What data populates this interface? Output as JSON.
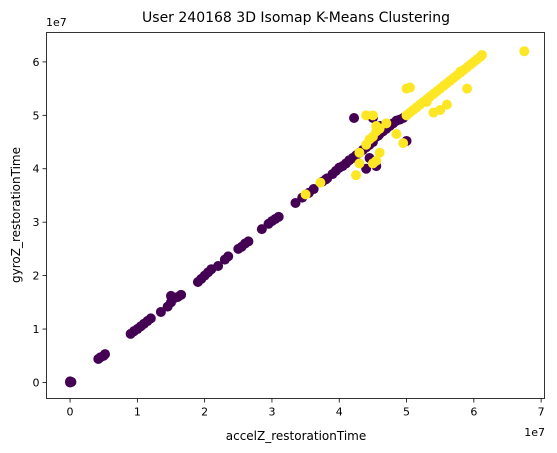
{
  "chart_data": {
    "type": "scatter",
    "title": "User 240168 3D Isomap K-Means Clustering",
    "xlabel": "accelZ_restorationTime",
    "ylabel": "gyroZ_restorationTime",
    "x_offset_label": "1e7",
    "y_offset_label": "1e7",
    "xlim": [
      -0.35,
      7.05
    ],
    "ylim": [
      -0.3,
      6.55
    ],
    "xticks": [
      0,
      1,
      2,
      3,
      4,
      5,
      6,
      7
    ],
    "yticks": [
      0,
      1,
      2,
      3,
      4,
      5,
      6
    ],
    "grid": false,
    "colors": {
      "cluster_0": "#440154",
      "cluster_1": "#fde725"
    },
    "series": [
      {
        "color": "#440154",
        "points": [
          [
            0.0,
            0.0
          ],
          [
            0.0,
            0.02
          ],
          [
            0.02,
            0.01
          ],
          [
            0.42,
            0.44
          ],
          [
            0.45,
            0.47
          ],
          [
            0.5,
            0.5
          ],
          [
            0.52,
            0.53
          ],
          [
            0.9,
            0.91
          ],
          [
            0.95,
            0.96
          ],
          [
            1.0,
            1.0
          ],
          [
            1.05,
            1.05
          ],
          [
            1.1,
            1.1
          ],
          [
            1.15,
            1.15
          ],
          [
            1.2,
            1.2
          ],
          [
            1.35,
            1.32
          ],
          [
            1.45,
            1.42
          ],
          [
            1.5,
            1.5
          ],
          [
            1.55,
            1.58
          ],
          [
            1.5,
            1.62
          ],
          [
            1.6,
            1.6
          ],
          [
            1.65,
            1.64
          ],
          [
            1.9,
            1.88
          ],
          [
            1.95,
            1.94
          ],
          [
            2.0,
            2.0
          ],
          [
            2.05,
            2.06
          ],
          [
            2.1,
            2.12
          ],
          [
            2.2,
            2.18
          ],
          [
            2.3,
            2.3
          ],
          [
            2.35,
            2.36
          ],
          [
            2.5,
            2.5
          ],
          [
            2.55,
            2.54
          ],
          [
            2.6,
            2.6
          ],
          [
            2.65,
            2.64
          ],
          [
            2.85,
            2.87
          ],
          [
            2.95,
            2.97
          ],
          [
            3.0,
            3.02
          ],
          [
            3.05,
            3.06
          ],
          [
            3.1,
            3.1
          ],
          [
            3.35,
            3.36
          ],
          [
            3.45,
            3.46
          ],
          [
            3.55,
            3.55
          ],
          [
            3.62,
            3.62
          ],
          [
            3.75,
            3.76
          ],
          [
            3.82,
            3.82
          ],
          [
            3.9,
            3.9
          ],
          [
            3.95,
            3.96
          ],
          [
            4.0,
            4.02
          ],
          [
            4.05,
            4.05
          ],
          [
            4.1,
            4.1
          ],
          [
            4.15,
            4.16
          ],
          [
            4.2,
            4.2
          ],
          [
            4.22,
            4.95
          ],
          [
            4.3,
            4.3
          ],
          [
            4.35,
            4.35
          ],
          [
            4.4,
            4.4
          ],
          [
            4.45,
            4.45
          ],
          [
            4.5,
            4.5
          ],
          [
            4.5,
            4.95
          ],
          [
            4.55,
            4.6
          ],
          [
            4.58,
            4.62
          ],
          [
            4.6,
            4.65
          ],
          [
            4.65,
            4.7
          ],
          [
            4.7,
            4.75
          ],
          [
            4.75,
            4.8
          ],
          [
            4.8,
            4.85
          ],
          [
            4.85,
            4.9
          ],
          [
            4.9,
            4.92
          ],
          [
            4.95,
            4.95
          ],
          [
            4.45,
            4.2
          ],
          [
            4.4,
            4.0
          ],
          [
            4.55,
            4.05
          ],
          [
            5.0,
            4.52
          ],
          [
            3.8,
            3.8
          ],
          [
            4.25,
            4.25
          ],
          [
            4.6,
            4.8
          ]
        ]
      },
      {
        "color": "#fde725",
        "points": [
          [
            3.5,
            3.52
          ],
          [
            3.72,
            3.74
          ],
          [
            4.3,
            4.3
          ],
          [
            4.4,
            4.45
          ],
          [
            4.45,
            4.55
          ],
          [
            4.5,
            4.6
          ],
          [
            4.55,
            4.7
          ],
          [
            4.6,
            4.75
          ],
          [
            4.7,
            4.85
          ],
          [
            4.4,
            5.0
          ],
          [
            4.5,
            5.0
          ],
          [
            4.5,
            4.1
          ],
          [
            4.55,
            4.15
          ],
          [
            4.55,
            4.8
          ],
          [
            4.25,
            3.88
          ],
          [
            4.3,
            4.1
          ],
          [
            4.6,
            4.3
          ],
          [
            4.85,
            4.65
          ],
          [
            4.95,
            4.48
          ],
          [
            5.0,
            5.5
          ],
          [
            5.05,
            5.52
          ],
          [
            5.0,
            5.0
          ],
          [
            5.05,
            5.05
          ],
          [
            5.1,
            5.1
          ],
          [
            5.15,
            5.15
          ],
          [
            5.2,
            5.2
          ],
          [
            5.25,
            5.25
          ],
          [
            5.3,
            5.3
          ],
          [
            5.35,
            5.35
          ],
          [
            5.4,
            5.4
          ],
          [
            5.45,
            5.45
          ],
          [
            5.5,
            5.5
          ],
          [
            5.55,
            5.55
          ],
          [
            5.6,
            5.6
          ],
          [
            5.65,
            5.65
          ],
          [
            5.7,
            5.7
          ],
          [
            5.75,
            5.75
          ],
          [
            5.8,
            5.8
          ],
          [
            5.85,
            5.85
          ],
          [
            5.9,
            5.9
          ],
          [
            5.95,
            5.95
          ],
          [
            6.0,
            6.0
          ],
          [
            6.05,
            6.05
          ],
          [
            6.1,
            6.1
          ],
          [
            6.12,
            6.13
          ],
          [
            5.4,
            5.05
          ],
          [
            5.5,
            5.1
          ],
          [
            5.6,
            5.2
          ],
          [
            5.9,
            5.5
          ],
          [
            6.75,
            6.2
          ],
          [
            5.3,
            5.25
          ],
          [
            5.8,
            5.82
          ]
        ]
      }
    ]
  }
}
